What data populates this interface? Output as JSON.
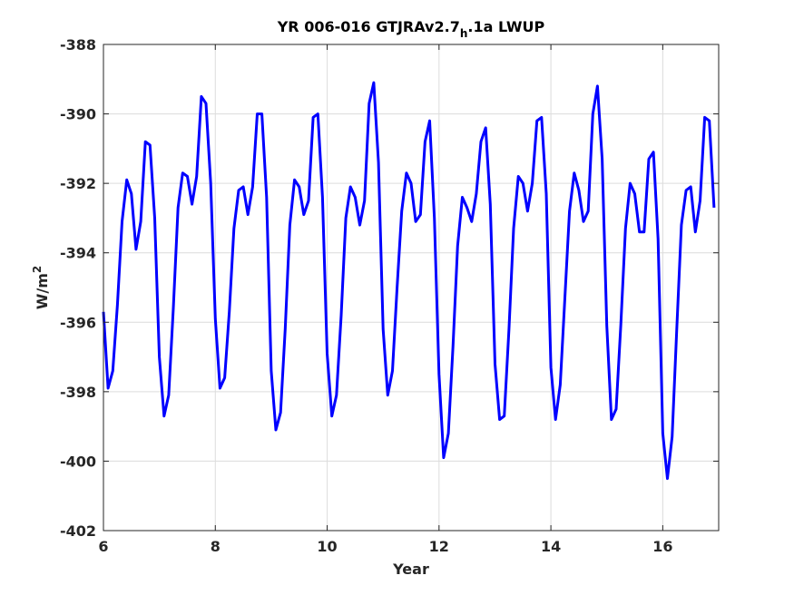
{
  "chart_data": {
    "type": "line",
    "title": "YR 006-016 GTJRAv2.7",
    "title_subscript": "h",
    "title_suffix": ".1a LWUP",
    "xlabel": "Year",
    "ylabel": "W/m",
    "ylabel_superscript": "2",
    "xlim": [
      6,
      17
    ],
    "ylim": [
      -402,
      -388
    ],
    "xticks": [
      6,
      8,
      10,
      12,
      14,
      16
    ],
    "yticks": [
      -402,
      -400,
      -398,
      -396,
      -394,
      -392,
      -390,
      -388
    ],
    "xtick_labels": [
      "6",
      "8",
      "10",
      "12",
      "14",
      "16"
    ],
    "ytick_labels": [
      "-402",
      "-400",
      "-398",
      "-396",
      "-394",
      "-392",
      "-390",
      "-388"
    ],
    "grid": true,
    "line_color": "#0000ff",
    "series": [
      {
        "x": [
          6.0,
          6.083,
          6.167,
          6.25,
          6.333,
          6.417,
          6.5,
          6.583,
          6.667,
          6.75,
          6.833,
          6.917,
          7.0,
          7.083,
          7.167,
          7.25,
          7.333,
          7.417,
          7.5,
          7.583,
          7.667,
          7.75,
          7.833,
          7.917,
          8.0,
          8.083,
          8.167,
          8.25,
          8.333,
          8.417,
          8.5,
          8.583,
          8.667,
          8.75,
          8.833,
          8.917,
          9.0,
          9.083,
          9.167,
          9.25,
          9.333,
          9.417,
          9.5,
          9.583,
          9.667,
          9.75,
          9.833,
          9.917,
          10.0,
          10.083,
          10.167,
          10.25,
          10.333,
          10.417,
          10.5,
          10.583,
          10.667,
          10.75,
          10.833,
          10.917,
          11.0,
          11.083,
          11.167,
          11.25,
          11.333,
          11.417,
          11.5,
          11.583,
          11.667,
          11.75,
          11.833,
          11.917,
          12.0,
          12.083,
          12.167,
          12.25,
          12.333,
          12.417,
          12.5,
          12.583,
          12.667,
          12.75,
          12.833,
          12.917,
          13.0,
          13.083,
          13.167,
          13.25,
          13.333,
          13.417,
          13.5,
          13.583,
          13.667,
          13.75,
          13.833,
          13.917,
          14.0,
          14.083,
          14.167,
          14.25,
          14.333,
          14.417,
          14.5,
          14.583,
          14.667,
          14.75,
          14.833,
          14.917,
          15.0,
          15.083,
          15.167,
          15.25,
          15.333,
          15.417,
          15.5,
          15.583,
          15.667,
          15.75,
          15.833,
          15.917,
          16.0,
          16.083,
          16.167,
          16.25,
          16.333,
          16.417,
          16.5,
          16.583,
          16.667,
          16.75,
          16.833,
          16.917
        ],
        "values": [
          -395.7,
          -397.9,
          -397.4,
          -395.5,
          -393.1,
          -391.9,
          -392.3,
          -393.9,
          -393.1,
          -390.8,
          -390.9,
          -393.0,
          -397.0,
          -398.7,
          -398.1,
          -395.6,
          -392.7,
          -391.7,
          -391.8,
          -392.6,
          -391.8,
          -389.5,
          -389.7,
          -392.0,
          -395.9,
          -397.9,
          -397.6,
          -395.7,
          -393.3,
          -392.2,
          -392.1,
          -392.9,
          -392.1,
          -390.0,
          -390.0,
          -392.4,
          -397.4,
          -399.1,
          -398.6,
          -396.2,
          -393.2,
          -391.9,
          -392.1,
          -392.9,
          -392.5,
          -390.1,
          -390.0,
          -392.4,
          -396.9,
          -398.7,
          -398.1,
          -395.8,
          -393.0,
          -392.1,
          -392.4,
          -393.2,
          -392.5,
          -389.7,
          -389.1,
          -391.4,
          -396.2,
          -398.1,
          -397.4,
          -395.0,
          -392.8,
          -391.7,
          -392.0,
          -393.1,
          -392.9,
          -390.8,
          -390.2,
          -393.0,
          -397.5,
          -399.9,
          -399.2,
          -396.7,
          -393.8,
          -392.4,
          -392.7,
          -393.1,
          -392.3,
          -390.8,
          -390.4,
          -392.6,
          -397.2,
          -398.8,
          -398.7,
          -396.2,
          -393.3,
          -391.8,
          -392.0,
          -392.8,
          -392.0,
          -390.2,
          -390.1,
          -392.3,
          -397.3,
          -398.8,
          -397.8,
          -395.3,
          -392.8,
          -391.7,
          -392.2,
          -393.1,
          -392.8,
          -390.0,
          -389.2,
          -391.3,
          -396.1,
          -398.8,
          -398.5,
          -396.1,
          -393.3,
          -392.0,
          -392.3,
          -393.4,
          -393.4,
          -391.3,
          -391.1,
          -393.6,
          -399.2,
          -400.5,
          -399.3,
          -396.2,
          -393.2,
          -392.2,
          -392.1,
          -393.4,
          -392.5,
          -390.1,
          -390.2,
          -392.7
        ]
      }
    ]
  }
}
